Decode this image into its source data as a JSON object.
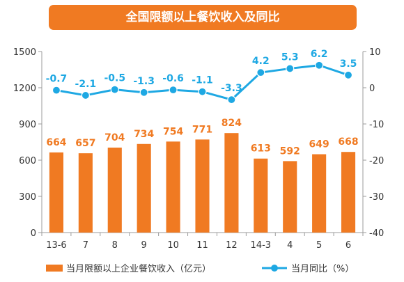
{
  "chart_data": {
    "title": "全国限额以上餐饮收入及同比",
    "categories": [
      "13-6",
      "7",
      "8",
      "9",
      "10",
      "11",
      "12",
      "14-3",
      "4",
      "5",
      "6"
    ],
    "series": [
      {
        "name": "当月限额以上企业餐饮收入（亿元）",
        "type": "bar",
        "axis": "left",
        "color": "#f07a22",
        "values": [
          664,
          657,
          704,
          734,
          754,
          771,
          824,
          613,
          592,
          649,
          668
        ],
        "labels": [
          "664",
          "657",
          "704",
          "734",
          "754",
          "771",
          "824",
          "613",
          "592",
          "649",
          "668"
        ]
      },
      {
        "name": "当月同比（%）",
        "type": "line",
        "axis": "right",
        "color": "#1ea8e3",
        "values": [
          -0.7,
          -2.1,
          -0.5,
          -1.3,
          -0.6,
          -1.1,
          -3.3,
          4.2,
          5.3,
          6.2,
          3.5
        ],
        "labels": [
          "-0.7",
          "-2.1",
          "-0.5",
          "-1.3",
          "-0.6",
          "-1.1",
          "-3.3",
          "4.2",
          "5.3",
          "6.2",
          "3.5"
        ]
      }
    ],
    "y_left": {
      "range": [
        0,
        1500
      ],
      "ticks": [
        0,
        300,
        600,
        900,
        1200,
        1500
      ],
      "tick_labels": [
        "0",
        "300",
        "600",
        "900",
        "1200",
        "1500"
      ]
    },
    "y_right": {
      "range": [
        -40,
        10
      ],
      "ticks": [
        -40,
        -30,
        -20,
        -10,
        0,
        10
      ],
      "tick_labels": [
        "-40",
        "-30",
        "-20",
        "-10",
        "0",
        "10"
      ]
    },
    "grid": false,
    "legend_position": "bottom"
  }
}
